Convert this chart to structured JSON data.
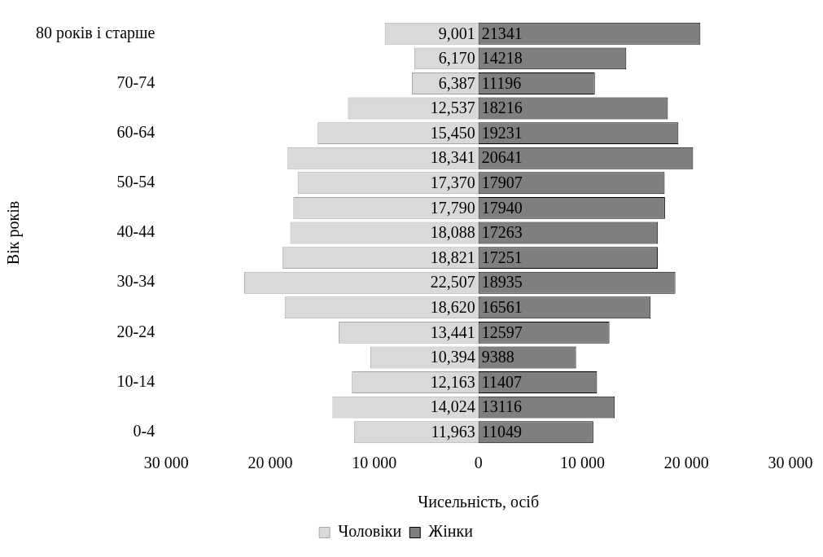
{
  "chart_data": {
    "type": "bar",
    "orientation": "horizontal",
    "xlabel": "Чисельність, осіб",
    "ylabel": "Вік років",
    "categories": [
      "80 років і старше",
      null,
      "70-74",
      null,
      "60-64",
      null,
      "50-54",
      null,
      "40-44",
      null,
      "30-34",
      null,
      "20-24",
      null,
      "10-14",
      null,
      "0-4"
    ],
    "series": [
      {
        "name": "Чоловіки",
        "color": "#d9d9d9",
        "values": [
          9001,
          6170,
          6387,
          12537,
          15450,
          18341,
          17370,
          17790,
          18088,
          18821,
          22507,
          18620,
          13441,
          10394,
          12163,
          14024,
          11963
        ],
        "base": [
          -9001,
          -6170,
          -6387,
          -12537,
          -15450,
          -18341,
          -17370,
          -17790,
          -18088,
          -18821,
          -22507,
          -18620,
          -13441,
          -10394,
          -12163,
          -14024,
          -11963
        ],
        "value_labels": [
          "9,001",
          "6,170",
          "6,387",
          "12,537",
          "15,450",
          "18,341",
          "17,370",
          "17,790",
          "18,088",
          "18,821",
          "22,507",
          "18,620",
          "13,441",
          "10,394",
          "12,163",
          "14,024",
          "11,963"
        ]
      },
      {
        "name": "Жінки",
        "color": "#7f7f7f",
        "values": [
          21341,
          14218,
          11196,
          18216,
          19231,
          20641,
          17907,
          17940,
          17263,
          17251,
          18935,
          16561,
          12597,
          9388,
          11407,
          13116,
          11049
        ],
        "value_labels": [
          "21341",
          "14218",
          "11196",
          "18216",
          "19231",
          "20641",
          "17907",
          "17940",
          "17263",
          "17251",
          "18935",
          "16561",
          "12597",
          "9388",
          "11407",
          "13116",
          "11049"
        ]
      }
    ],
    "xlim": [
      -30000,
      30000
    ],
    "xticks": [
      {
        "value": -30000,
        "label": "30 000"
      },
      {
        "value": -20000,
        "label": "20 000"
      },
      {
        "value": -10000,
        "label": "10 000"
      },
      0,
      {
        "value": 10000,
        "label": "10 000"
      },
      {
        "value": 20000,
        "label": "20 000"
      },
      {
        "value": 30000,
        "label": "30 000"
      }
    ],
    "grid": false,
    "legend": "bottom"
  }
}
